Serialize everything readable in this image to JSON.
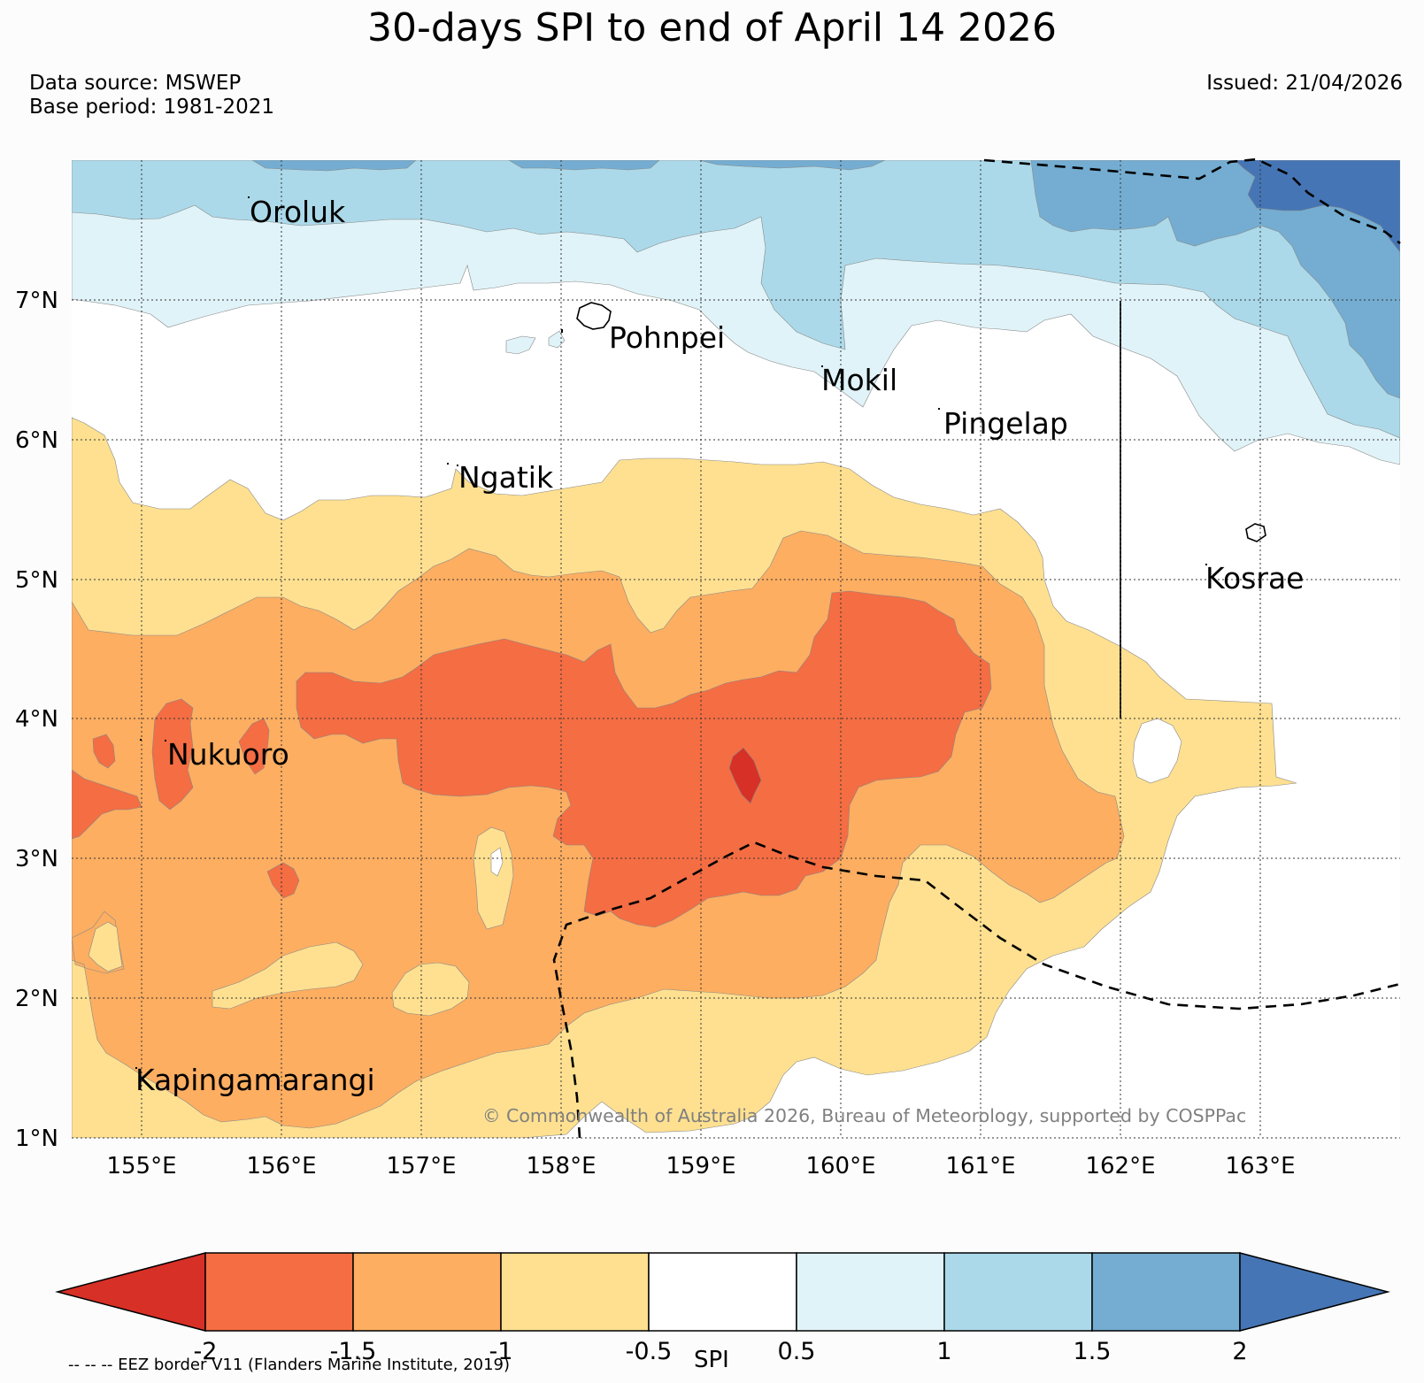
{
  "title": "30-days SPI to end of April 14 2026",
  "data_source": "Data source: MSWEP",
  "base_period": "Base period: 1981-2021",
  "issued": "Issued: 21/04/2026",
  "credit": "© Commonwealth of Australia 2026, Bureau of Meteorology, supported by COSPPac",
  "eez_note": "-- -- -- EEZ border V11 (Flanders Marine Institute, 2019)",
  "colorbar": {
    "title": "SPI",
    "tick_labels": [
      "-2",
      "-1.5",
      "-1",
      "-0.5",
      "0.5",
      "1",
      "1.5",
      "2"
    ],
    "colors": [
      "#d73027",
      "#f46d43",
      "#fdae61",
      "#fee090",
      "#ffffff",
      "#e0f3f8",
      "#abd9e9",
      "#74add1",
      "#4575b4"
    ]
  },
  "axes": {
    "lon_labels": [
      "155°E",
      "156°E",
      "157°E",
      "158°E",
      "159°E",
      "160°E",
      "161°E",
      "162°E",
      "163°E"
    ],
    "lat_labels": [
      "7°N",
      "6°N",
      "5°N",
      "4°N",
      "3°N",
      "2°N",
      "1°N"
    ],
    "lon_range": [
      154.5,
      164.0
    ],
    "lat_range": [
      1.0,
      8.0
    ]
  },
  "places": [
    {
      "name": "Oroluk"
    },
    {
      "name": "Pohnpei"
    },
    {
      "name": "Mokil"
    },
    {
      "name": "Pingelap"
    },
    {
      "name": "Ngatik"
    },
    {
      "name": "Kosrae"
    },
    {
      "name": "Nukuoro"
    },
    {
      "name": "Kapingamarangi"
    }
  ]
}
